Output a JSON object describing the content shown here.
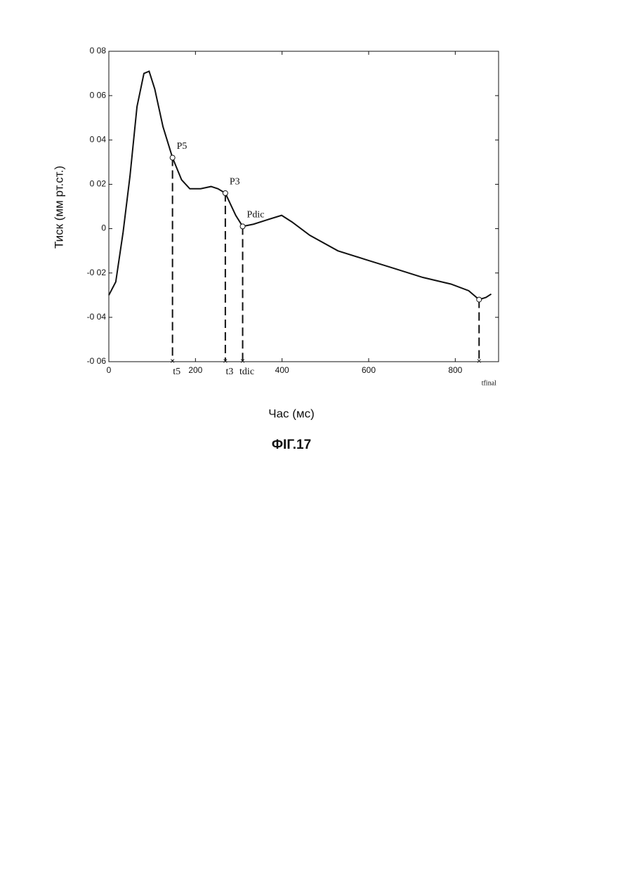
{
  "chart_data": {
    "type": "line",
    "x_label": "Час (мс)",
    "y_label": "Тиск (мм рт.ст.)",
    "caption": "ФІГ.17",
    "color": "#111111",
    "grid": false,
    "xlim": [
      0,
      900
    ],
    "ylim": [
      -0.06,
      0.08
    ],
    "xticks": [
      0,
      200,
      400,
      600,
      800
    ],
    "yticks": [
      {
        "value": 0.08,
        "label": "0 08"
      },
      {
        "value": 0.06,
        "label": "0 06"
      },
      {
        "value": 0.04,
        "label": "0 04"
      },
      {
        "value": 0.02,
        "label": "0 02"
      },
      0,
      {
        "value": -0.02,
        "label": "-0 02"
      },
      {
        "value": -0.04,
        "label": "-0 04"
      },
      {
        "value": -0.06,
        "label": "-0 06"
      }
    ],
    "x": [
      0,
      16,
      33,
      49,
      65,
      81,
      93,
      106,
      125,
      147,
      168,
      187,
      212,
      236,
      252,
      269,
      293,
      309,
      334,
      366,
      399,
      423,
      464,
      529,
      594,
      660,
      725,
      790,
      831,
      855,
      871,
      883
    ],
    "values": [
      -0.03,
      -0.024,
      -0.0015,
      0.024,
      0.055,
      0.07,
      0.071,
      0.063,
      0.046,
      0.032,
      0.022,
      0.018,
      0.018,
      0.019,
      0.018,
      0.016,
      0.006,
      0.001,
      0.002,
      0.004,
      0.006,
      0.003,
      -0.003,
      -0.01,
      -0.014,
      -0.018,
      -0.022,
      -0.025,
      -0.028,
      -0.032,
      -0.031,
      -0.0295
    ],
    "markers": [
      {
        "label": "P5",
        "time_label": "t5",
        "x": 147,
        "y": 0.032
      },
      {
        "label": "P3",
        "time_label": "t3",
        "x": 269,
        "y": 0.016
      },
      {
        "label": "Pdic",
        "time_label": "tdic",
        "x": 309,
        "y": 0.001
      },
      {
        "time_label": "tfinal",
        "x": 855,
        "y": -0.032
      }
    ]
  }
}
